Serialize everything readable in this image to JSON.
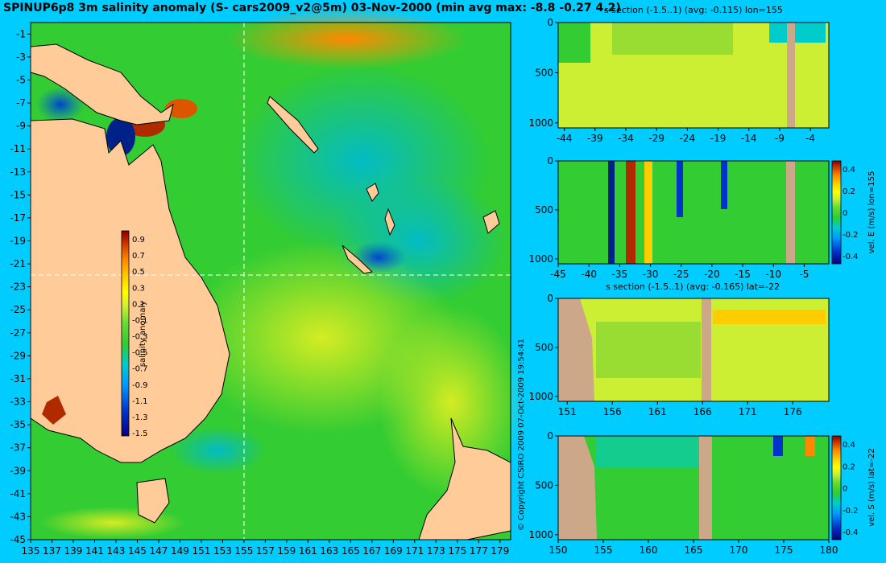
{
  "title": "SPINUP6p8 3m salinity anomaly (S- cars2009_v2@5m) 03-Nov-2000 (min avg max: -8.8 -0.27 4.2)",
  "copyright": "© Copyright CSIRO 2009   07-Oct-2009 19:54:41",
  "colors": {
    "background": "#00ccff",
    "land": "#ffcc99",
    "section_land": "#cca888",
    "ocean_mid": "#33cc33",
    "ocean_fresh": "#0099cc",
    "ocean_salty": "#ccee33",
    "colormap": [
      "#000080",
      "#0033cc",
      "#0099ff",
      "#00cccc",
      "#33cc33",
      "#66dd33",
      "#ccee33",
      "#ffff00",
      "#ffcc00",
      "#ff8800",
      "#cc3300",
      "#800000"
    ]
  },
  "chart_data": [
    {
      "type": "heatmap",
      "name": "salinity map",
      "x_ticks": [
        "135",
        "137",
        "139",
        "141",
        "143",
        "145",
        "147",
        "149",
        "151",
        "153",
        "155",
        "157",
        "159",
        "161",
        "163",
        "165",
        "167",
        "169",
        "171",
        "173",
        "175",
        "177",
        "179"
      ],
      "y_ticks": [
        "-1",
        "-3",
        "-5",
        "-7",
        "-9",
        "-11",
        "-13",
        "-15",
        "-17",
        "-19",
        "-21",
        "-23",
        "-25",
        "-27",
        "-29",
        "-31",
        "-33",
        "-35",
        "-37",
        "-39",
        "-41",
        "-43",
        "-45"
      ],
      "xlim": [
        135,
        180
      ],
      "ylim": [
        -45,
        0
      ],
      "section_lines": {
        "lon": 155,
        "lat": -22
      },
      "colorbar": {
        "label": "salinity anomaly",
        "ticks": [
          "0.9",
          "0.7",
          "0.5",
          "0.3",
          "0.1",
          "-0.1",
          "-0.3",
          "-0.5",
          "-0.7",
          "-0.9",
          "-1.1",
          "-1.3",
          "-1.5"
        ],
        "range": [
          -1.5,
          0.9
        ]
      }
    },
    {
      "type": "heatmap",
      "name": "s section lon",
      "title": "s section (-1.5..1) (avg: -0.115) lon=155",
      "x_ticks": [
        "-44",
        "-39",
        "-34",
        "-29",
        "-24",
        "-19",
        "-14",
        "-9",
        "-4"
      ],
      "y_ticks": [
        "0",
        "500",
        "1000"
      ],
      "xlim": [
        -45,
        -1
      ],
      "ylim": [
        0,
        1050
      ]
    },
    {
      "type": "heatmap",
      "name": "vel E section lon",
      "x_ticks": [
        "-45",
        "-40",
        "-35",
        "-30",
        "-25",
        "-20",
        "-15",
        "-10",
        "-5"
      ],
      "y_ticks": [
        "0",
        "500",
        "1000"
      ],
      "xlim": [
        -45,
        -1
      ],
      "ylim": [
        0,
        1050
      ],
      "colorbar": {
        "label": "vel. E (m/s) lon=155",
        "ticks": [
          "0.4",
          "0.2",
          "0",
          "-0.2",
          "-0.4"
        ],
        "range": [
          -0.4,
          0.4
        ]
      }
    },
    {
      "type": "heatmap",
      "name": "s section lat",
      "title": "s section (-1.5..1) (avg: -0.165) lat=-22",
      "x_ticks": [
        "151",
        "156",
        "161",
        "166",
        "171",
        "176"
      ],
      "y_ticks": [
        "0",
        "500",
        "1000"
      ],
      "xlim": [
        150,
        180
      ],
      "ylim": [
        0,
        1050
      ]
    },
    {
      "type": "heatmap",
      "name": "vel S section lat",
      "x_ticks": [
        "150",
        "155",
        "160",
        "165",
        "170",
        "175",
        "180"
      ],
      "y_ticks": [
        "0",
        "500",
        "1000"
      ],
      "xlim": [
        150,
        180
      ],
      "ylim": [
        0,
        1050
      ],
      "colorbar": {
        "label": "vel. S (m/s) lat=-22",
        "ticks": [
          "0.4",
          "0.2",
          "0",
          "-0.2",
          "-0.4"
        ],
        "range": [
          -0.4,
          0.4
        ]
      }
    }
  ]
}
